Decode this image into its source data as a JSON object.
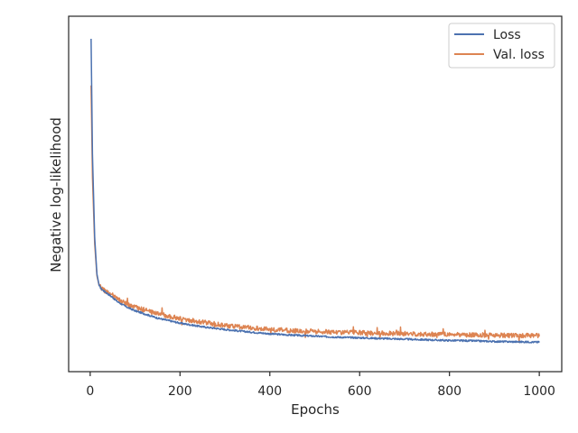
{
  "chart_data": {
    "type": "line",
    "xlabel": "Epochs",
    "ylabel": "Negative log-likelihood",
    "xlim": [
      -48,
      1050
    ],
    "ylim": [
      0.0,
      1.0
    ],
    "xticks": [
      0,
      200,
      400,
      600,
      800,
      1000
    ],
    "yticks_shown": false,
    "grid": false,
    "legend": {
      "placement": "top-right"
    },
    "series": [
      {
        "name": "Loss",
        "color": "#4c72b0",
        "x": [
          2,
          5,
          10,
          15,
          20,
          25,
          30,
          40,
          50,
          60,
          80,
          100,
          150,
          200,
          250,
          300,
          350,
          400,
          450,
          500,
          550,
          600,
          650,
          700,
          750,
          800,
          850,
          900,
          950,
          1000
        ],
        "y": [
          0.965,
          0.62,
          0.37,
          0.26,
          0.225,
          0.215,
          0.21,
          0.2,
          0.19,
          0.178,
          0.162,
          0.15,
          0.128,
          0.113,
          0.102,
          0.094,
          0.087,
          0.081,
          0.077,
          0.074,
          0.071,
          0.069,
          0.067,
          0.065,
          0.063,
          0.061,
          0.06,
          0.058,
          0.057,
          0.056
        ]
      },
      {
        "name": "Val. loss",
        "color": "#dd8452",
        "x": [
          2,
          5,
          10,
          15,
          20,
          25,
          30,
          40,
          50,
          60,
          80,
          100,
          150,
          200,
          250,
          300,
          350,
          400,
          450,
          500,
          550,
          600,
          650,
          700,
          750,
          800,
          850,
          900,
          950,
          1000
        ],
        "y": [
          0.825,
          0.55,
          0.35,
          0.255,
          0.225,
          0.218,
          0.212,
          0.204,
          0.196,
          0.186,
          0.17,
          0.16,
          0.142,
          0.126,
          0.116,
          0.106,
          0.1,
          0.094,
          0.09,
          0.088,
          0.086,
          0.084,
          0.083,
          0.081,
          0.08,
          0.079,
          0.078,
          0.077,
          0.076,
          0.075
        ]
      }
    ]
  }
}
